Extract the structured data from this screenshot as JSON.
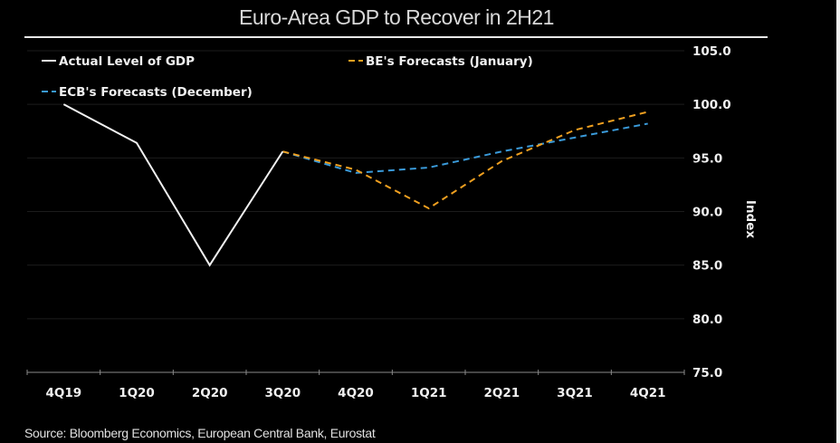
{
  "chart_data": {
    "type": "line",
    "title": "Euro-Area GDP to Recover in 2H21",
    "ylabel": "Index",
    "xlabel": "",
    "categories": [
      "4Q19",
      "1Q20",
      "2Q20",
      "3Q20",
      "4Q20",
      "1Q21",
      "2Q21",
      "3Q21",
      "4Q21"
    ],
    "ylim": [
      75,
      105
    ],
    "yticks": [
      "105.0",
      "100.0",
      "95.0",
      "90.0",
      "85.0",
      "80.0",
      "75.0"
    ],
    "grid": true,
    "y_axis_side": "right",
    "legend_position": "top-left",
    "series": [
      {
        "name": "Actual Level of GDP",
        "color": "#f0f0f0",
        "style": "solid",
        "values": [
          100.0,
          96.4,
          85.0,
          95.6,
          null,
          null,
          null,
          null,
          null
        ]
      },
      {
        "name": "BE's Forecasts (January)",
        "color": "#f0a020",
        "style": "dashed",
        "values": [
          null,
          null,
          null,
          95.6,
          93.9,
          90.3,
          94.7,
          97.6,
          99.3
        ]
      },
      {
        "name": "ECB's Forecasts (December)",
        "color": "#3a9ad9",
        "style": "dashed",
        "values": [
          null,
          null,
          null,
          95.6,
          93.6,
          94.1,
          95.6,
          96.9,
          98.2
        ]
      }
    ]
  },
  "source": "Source: Bloomberg Economics, European Central Bank, Eurostat"
}
